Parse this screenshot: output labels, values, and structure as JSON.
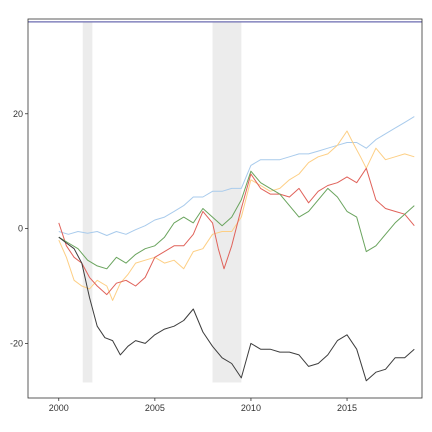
{
  "chart_data": {
    "type": "line",
    "title": "",
    "xlabel": "",
    "ylabel": "",
    "xlim": [
      1998.4,
      2018.9
    ],
    "ylim": [
      -29.5,
      36.5
    ],
    "x_ticks": [
      2000,
      2005,
      2010,
      2015
    ],
    "y_ticks": [
      -20,
      0,
      20
    ],
    "x_tick_labels": [
      "2000",
      "2005",
      "2010",
      "2015"
    ],
    "y_tick_labels": [
      "-20",
      "0",
      "20"
    ],
    "grid": false,
    "legend": "none",
    "reference_line": {
      "y": 36,
      "color": "#6b6bb0"
    },
    "shaded_periods": [
      {
        "start": 2001.25,
        "end": 2001.75,
        "ymin": -26.8,
        "ymax": 36,
        "color": "#ececec"
      },
      {
        "start": 2008.0,
        "end": 2009.5,
        "ymin": -26.8,
        "ymax": 36,
        "color": "#ececec"
      }
    ],
    "series": [
      {
        "color": "#a9cbec",
        "points": [
          [
            2000.0,
            -0.5
          ],
          [
            2000.5,
            -1.0
          ],
          [
            2001.0,
            -0.5
          ],
          [
            2001.5,
            -0.8
          ],
          [
            2002.0,
            -0.5
          ],
          [
            2002.5,
            -1.2
          ],
          [
            2003.0,
            -0.5
          ],
          [
            2003.5,
            -1.0
          ],
          [
            2004.0,
            -0.2
          ],
          [
            2004.5,
            0.5
          ],
          [
            2005.0,
            1.5
          ],
          [
            2005.5,
            2.0
          ],
          [
            2006.0,
            3.0
          ],
          [
            2006.5,
            4.0
          ],
          [
            2007.0,
            5.5
          ],
          [
            2007.5,
            5.5
          ],
          [
            2008.0,
            6.5
          ],
          [
            2008.5,
            6.5
          ],
          [
            2009.0,
            7.0
          ],
          [
            2009.5,
            7.0
          ],
          [
            2010.0,
            11.0
          ],
          [
            2010.5,
            12.0
          ],
          [
            2011.0,
            12.0
          ],
          [
            2011.5,
            12.0
          ],
          [
            2012.0,
            12.5
          ],
          [
            2012.5,
            13.0
          ],
          [
            2013.0,
            13.0
          ],
          [
            2013.5,
            13.5
          ],
          [
            2014.0,
            14.0
          ],
          [
            2014.5,
            14.5
          ],
          [
            2015.0,
            15.0
          ],
          [
            2015.5,
            15.0
          ],
          [
            2016.0,
            14.0
          ],
          [
            2016.5,
            15.5
          ],
          [
            2017.0,
            16.5
          ],
          [
            2017.5,
            17.5
          ],
          [
            2018.0,
            18.5
          ],
          [
            2018.5,
            19.5
          ]
        ]
      },
      {
        "color": "#fdcf85",
        "points": [
          [
            2000.0,
            -2.0
          ],
          [
            2000.4,
            -5.0
          ],
          [
            2000.8,
            -9.0
          ],
          [
            2001.2,
            -10.0
          ],
          [
            2001.6,
            -10.5
          ],
          [
            2002.0,
            -9.0
          ],
          [
            2002.5,
            -10.0
          ],
          [
            2002.8,
            -12.5
          ],
          [
            2003.2,
            -9.5
          ],
          [
            2003.6,
            -8.0
          ],
          [
            2004.0,
            -6.0
          ],
          [
            2004.5,
            -5.5
          ],
          [
            2005.0,
            -5.0
          ],
          [
            2005.5,
            -6.0
          ],
          [
            2006.0,
            -5.5
          ],
          [
            2006.5,
            -7.0
          ],
          [
            2007.0,
            -4.0
          ],
          [
            2007.5,
            -3.5
          ],
          [
            2008.0,
            -1.0
          ],
          [
            2008.5,
            -0.5
          ],
          [
            2009.0,
            -0.5
          ],
          [
            2009.5,
            2.0
          ],
          [
            2010.0,
            8.5
          ],
          [
            2010.5,
            7.5
          ],
          [
            2011.0,
            6.5
          ],
          [
            2011.5,
            7.0
          ],
          [
            2012.0,
            8.5
          ],
          [
            2012.5,
            9.5
          ],
          [
            2013.0,
            11.5
          ],
          [
            2013.5,
            12.5
          ],
          [
            2014.0,
            13.0
          ],
          [
            2014.5,
            14.5
          ],
          [
            2015.0,
            17.0
          ],
          [
            2015.3,
            15.0
          ],
          [
            2015.7,
            12.5
          ],
          [
            2016.0,
            10.5
          ],
          [
            2016.5,
            14.0
          ],
          [
            2017.0,
            12.0
          ],
          [
            2017.5,
            12.5
          ],
          [
            2018.0,
            13.0
          ],
          [
            2018.5,
            12.5
          ]
        ]
      },
      {
        "color": "#e0625a",
        "points": [
          [
            2000.0,
            1.0
          ],
          [
            2000.4,
            -3.0
          ],
          [
            2000.8,
            -5.0
          ],
          [
            2001.2,
            -6.0
          ],
          [
            2001.6,
            -8.5
          ],
          [
            2002.0,
            -10.0
          ],
          [
            2002.5,
            -11.5
          ],
          [
            2003.0,
            -9.5
          ],
          [
            2003.5,
            -9.0
          ],
          [
            2004.0,
            -10.0
          ],
          [
            2004.5,
            -8.5
          ],
          [
            2005.0,
            -5.0
          ],
          [
            2005.5,
            -4.0
          ],
          [
            2006.0,
            -3.0
          ],
          [
            2006.5,
            -3.0
          ],
          [
            2007.0,
            -1.0
          ],
          [
            2007.5,
            3.0
          ],
          [
            2008.0,
            1.0
          ],
          [
            2008.3,
            -3.5
          ],
          [
            2008.6,
            -7.0
          ],
          [
            2009.0,
            -3.0
          ],
          [
            2009.5,
            3.5
          ],
          [
            2010.0,
            9.5
          ],
          [
            2010.5,
            7.0
          ],
          [
            2011.0,
            6.0
          ],
          [
            2011.5,
            6.0
          ],
          [
            2012.0,
            5.5
          ],
          [
            2012.5,
            7.0
          ],
          [
            2013.0,
            4.5
          ],
          [
            2013.5,
            6.5
          ],
          [
            2014.0,
            7.5
          ],
          [
            2014.5,
            8.0
          ],
          [
            2015.0,
            9.0
          ],
          [
            2015.5,
            8.0
          ],
          [
            2016.0,
            10.5
          ],
          [
            2016.5,
            5.0
          ],
          [
            2017.0,
            3.5
          ],
          [
            2017.5,
            3.0
          ],
          [
            2018.0,
            2.5
          ],
          [
            2018.5,
            0.5
          ]
        ]
      },
      {
        "color": "#6aa45e",
        "points": [
          [
            2000.0,
            -1.5
          ],
          [
            2000.5,
            -2.5
          ],
          [
            2001.0,
            -3.5
          ],
          [
            2001.5,
            -5.5
          ],
          [
            2002.0,
            -6.5
          ],
          [
            2002.5,
            -7.0
          ],
          [
            2003.0,
            -5.0
          ],
          [
            2003.5,
            -6.0
          ],
          [
            2004.0,
            -4.5
          ],
          [
            2004.5,
            -3.5
          ],
          [
            2005.0,
            -3.0
          ],
          [
            2005.5,
            -1.5
          ],
          [
            2006.0,
            1.0
          ],
          [
            2006.5,
            2.0
          ],
          [
            2007.0,
            1.0
          ],
          [
            2007.5,
            3.5
          ],
          [
            2008.0,
            2.0
          ],
          [
            2008.5,
            0.5
          ],
          [
            2009.0,
            2.0
          ],
          [
            2009.5,
            5.0
          ],
          [
            2010.0,
            10.0
          ],
          [
            2010.5,
            8.0
          ],
          [
            2011.0,
            7.0
          ],
          [
            2011.5,
            6.0
          ],
          [
            2012.0,
            4.0
          ],
          [
            2012.5,
            2.0
          ],
          [
            2013.0,
            3.0
          ],
          [
            2013.5,
            5.0
          ],
          [
            2014.0,
            7.0
          ],
          [
            2014.5,
            5.5
          ],
          [
            2015.0,
            3.0
          ],
          [
            2015.5,
            2.0
          ],
          [
            2016.0,
            -4.0
          ],
          [
            2016.5,
            -3.0
          ],
          [
            2017.0,
            -1.0
          ],
          [
            2017.5,
            1.0
          ],
          [
            2018.0,
            2.5
          ],
          [
            2018.5,
            4.0
          ]
        ]
      },
      {
        "color": "#3d3d3d",
        "points": [
          [
            2000.0,
            -1.5
          ],
          [
            2000.4,
            -2.5
          ],
          [
            2000.8,
            -3.5
          ],
          [
            2001.2,
            -6.0
          ],
          [
            2001.6,
            -12.0
          ],
          [
            2002.0,
            -17.0
          ],
          [
            2002.4,
            -19.0
          ],
          [
            2002.8,
            -19.5
          ],
          [
            2003.2,
            -22.0
          ],
          [
            2003.6,
            -20.5
          ],
          [
            2004.0,
            -19.5
          ],
          [
            2004.5,
            -20.0
          ],
          [
            2005.0,
            -18.5
          ],
          [
            2005.5,
            -17.5
          ],
          [
            2006.0,
            -17.0
          ],
          [
            2006.5,
            -16.0
          ],
          [
            2007.0,
            -14.0
          ],
          [
            2007.5,
            -18.0
          ],
          [
            2008.0,
            -20.5
          ],
          [
            2008.5,
            -22.5
          ],
          [
            2009.0,
            -23.5
          ],
          [
            2009.5,
            -26.0
          ],
          [
            2010.0,
            -20.0
          ],
          [
            2010.5,
            -21.0
          ],
          [
            2011.0,
            -21.0
          ],
          [
            2011.5,
            -21.5
          ],
          [
            2012.0,
            -21.5
          ],
          [
            2012.5,
            -22.0
          ],
          [
            2013.0,
            -24.0
          ],
          [
            2013.5,
            -23.5
          ],
          [
            2014.0,
            -22.0
          ],
          [
            2014.5,
            -19.5
          ],
          [
            2015.0,
            -18.5
          ],
          [
            2015.5,
            -21.0
          ],
          [
            2016.0,
            -26.5
          ],
          [
            2016.5,
            -25.0
          ],
          [
            2017.0,
            -24.5
          ],
          [
            2017.5,
            -22.5
          ],
          [
            2018.0,
            -22.5
          ],
          [
            2018.5,
            -21.0
          ]
        ]
      }
    ]
  }
}
